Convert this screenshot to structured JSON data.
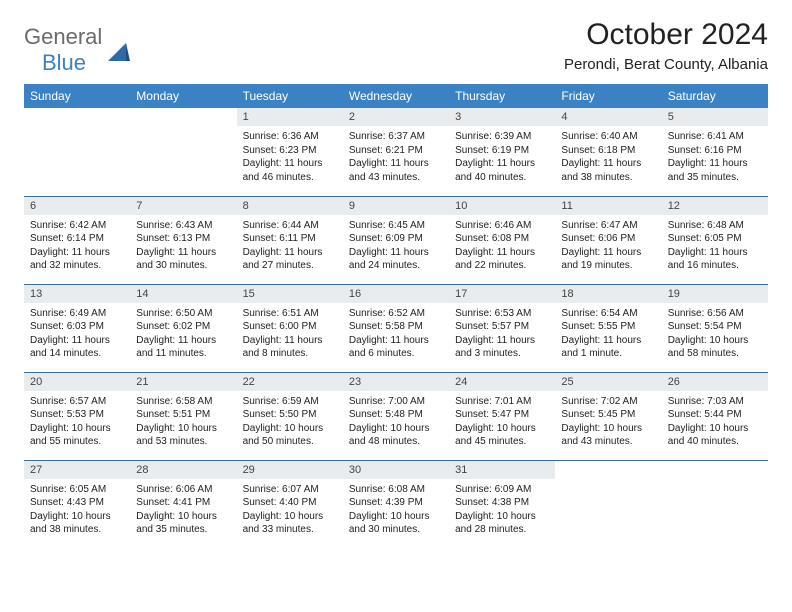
{
  "brand": {
    "line1": "General",
    "line2": "Blue"
  },
  "title": "October 2024",
  "location": "Perondi, Berat County, Albania",
  "colors": {
    "header_bg": "#3b82c4",
    "header_text": "#ffffff",
    "daynum_bg": "#e8ecef",
    "rule": "#3b6fa0",
    "logo_gray": "#6b6b6b",
    "logo_blue": "#3b82c4"
  },
  "day_names": [
    "Sunday",
    "Monday",
    "Tuesday",
    "Wednesday",
    "Thursday",
    "Friday",
    "Saturday"
  ],
  "weeks": [
    [
      null,
      null,
      {
        "n": "1",
        "sr": "6:36 AM",
        "ss": "6:23 PM",
        "dl": "11 hours and 46 minutes."
      },
      {
        "n": "2",
        "sr": "6:37 AM",
        "ss": "6:21 PM",
        "dl": "11 hours and 43 minutes."
      },
      {
        "n": "3",
        "sr": "6:39 AM",
        "ss": "6:19 PM",
        "dl": "11 hours and 40 minutes."
      },
      {
        "n": "4",
        "sr": "6:40 AM",
        "ss": "6:18 PM",
        "dl": "11 hours and 38 minutes."
      },
      {
        "n": "5",
        "sr": "6:41 AM",
        "ss": "6:16 PM",
        "dl": "11 hours and 35 minutes."
      }
    ],
    [
      {
        "n": "6",
        "sr": "6:42 AM",
        "ss": "6:14 PM",
        "dl": "11 hours and 32 minutes."
      },
      {
        "n": "7",
        "sr": "6:43 AM",
        "ss": "6:13 PM",
        "dl": "11 hours and 30 minutes."
      },
      {
        "n": "8",
        "sr": "6:44 AM",
        "ss": "6:11 PM",
        "dl": "11 hours and 27 minutes."
      },
      {
        "n": "9",
        "sr": "6:45 AM",
        "ss": "6:09 PM",
        "dl": "11 hours and 24 minutes."
      },
      {
        "n": "10",
        "sr": "6:46 AM",
        "ss": "6:08 PM",
        "dl": "11 hours and 22 minutes."
      },
      {
        "n": "11",
        "sr": "6:47 AM",
        "ss": "6:06 PM",
        "dl": "11 hours and 19 minutes."
      },
      {
        "n": "12",
        "sr": "6:48 AM",
        "ss": "6:05 PM",
        "dl": "11 hours and 16 minutes."
      }
    ],
    [
      {
        "n": "13",
        "sr": "6:49 AM",
        "ss": "6:03 PM",
        "dl": "11 hours and 14 minutes."
      },
      {
        "n": "14",
        "sr": "6:50 AM",
        "ss": "6:02 PM",
        "dl": "11 hours and 11 minutes."
      },
      {
        "n": "15",
        "sr": "6:51 AM",
        "ss": "6:00 PM",
        "dl": "11 hours and 8 minutes."
      },
      {
        "n": "16",
        "sr": "6:52 AM",
        "ss": "5:58 PM",
        "dl": "11 hours and 6 minutes."
      },
      {
        "n": "17",
        "sr": "6:53 AM",
        "ss": "5:57 PM",
        "dl": "11 hours and 3 minutes."
      },
      {
        "n": "18",
        "sr": "6:54 AM",
        "ss": "5:55 PM",
        "dl": "11 hours and 1 minute."
      },
      {
        "n": "19",
        "sr": "6:56 AM",
        "ss": "5:54 PM",
        "dl": "10 hours and 58 minutes."
      }
    ],
    [
      {
        "n": "20",
        "sr": "6:57 AM",
        "ss": "5:53 PM",
        "dl": "10 hours and 55 minutes."
      },
      {
        "n": "21",
        "sr": "6:58 AM",
        "ss": "5:51 PM",
        "dl": "10 hours and 53 minutes."
      },
      {
        "n": "22",
        "sr": "6:59 AM",
        "ss": "5:50 PM",
        "dl": "10 hours and 50 minutes."
      },
      {
        "n": "23",
        "sr": "7:00 AM",
        "ss": "5:48 PM",
        "dl": "10 hours and 48 minutes."
      },
      {
        "n": "24",
        "sr": "7:01 AM",
        "ss": "5:47 PM",
        "dl": "10 hours and 45 minutes."
      },
      {
        "n": "25",
        "sr": "7:02 AM",
        "ss": "5:45 PM",
        "dl": "10 hours and 43 minutes."
      },
      {
        "n": "26",
        "sr": "7:03 AM",
        "ss": "5:44 PM",
        "dl": "10 hours and 40 minutes."
      }
    ],
    [
      {
        "n": "27",
        "sr": "6:05 AM",
        "ss": "4:43 PM",
        "dl": "10 hours and 38 minutes."
      },
      {
        "n": "28",
        "sr": "6:06 AM",
        "ss": "4:41 PM",
        "dl": "10 hours and 35 minutes."
      },
      {
        "n": "29",
        "sr": "6:07 AM",
        "ss": "4:40 PM",
        "dl": "10 hours and 33 minutes."
      },
      {
        "n": "30",
        "sr": "6:08 AM",
        "ss": "4:39 PM",
        "dl": "10 hours and 30 minutes."
      },
      {
        "n": "31",
        "sr": "6:09 AM",
        "ss": "4:38 PM",
        "dl": "10 hours and 28 minutes."
      },
      null,
      null
    ]
  ],
  "labels": {
    "sunrise": "Sunrise:",
    "sunset": "Sunset:",
    "daylight": "Daylight:"
  }
}
